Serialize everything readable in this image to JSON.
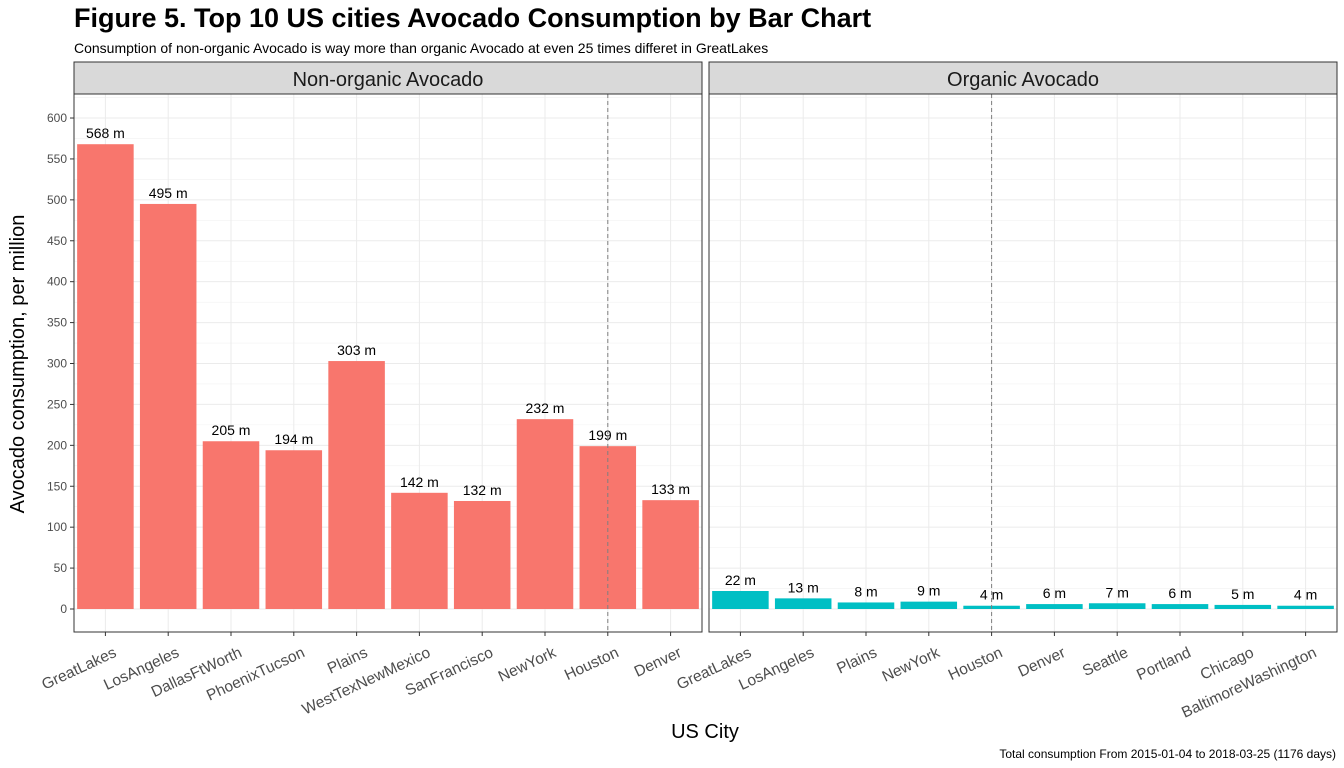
{
  "title": "Figure 5. Top 10 US cities Avocado Consumption by Bar Chart",
  "subtitle": "Consumption of non-organic Avocado is way more than organic Avocado at even 25 times differet in GreatLakes",
  "caption": "Total consumption From 2015-01-04 to 2018-03-25 (1176 days)",
  "chart_data": {
    "type": "bar",
    "title": "Figure 5. Top 10 US cities Avocado Consumption by Bar Chart",
    "subtitle": "Consumption of non-organic Avocado is way more than organic Avocado at even 25 times differet in GreatLakes",
    "xlabel": "US City",
    "ylabel": "Avocado consumption, per million",
    "ylim": [
      -25,
      625
    ],
    "yticks": [
      0,
      50,
      100,
      150,
      200,
      250,
      300,
      350,
      400,
      450,
      500,
      550,
      600
    ],
    "grid": true,
    "value_suffix": " m",
    "reference_line": "Houston",
    "panels": [
      {
        "name": "Non-organic Avocado",
        "color": "#F8766D",
        "categories": [
          "GreatLakes",
          "LosAngeles",
          "DallasFtWorth",
          "PhoenixTucson",
          "Plains",
          "WestTexNewMexico",
          "SanFrancisco",
          "NewYork",
          "Houston",
          "Denver"
        ],
        "values": [
          568,
          495,
          205,
          194,
          303,
          142,
          132,
          232,
          199,
          133
        ]
      },
      {
        "name": "Organic Avocado",
        "color": "#00BFC4",
        "categories": [
          "GreatLakes",
          "LosAngeles",
          "Plains",
          "NewYork",
          "Houston",
          "Denver",
          "Seattle",
          "Portland",
          "Chicago",
          "BaltimoreWashington"
        ],
        "values": [
          22,
          13,
          8,
          9,
          4,
          6,
          7,
          6,
          5,
          4
        ]
      }
    ]
  }
}
